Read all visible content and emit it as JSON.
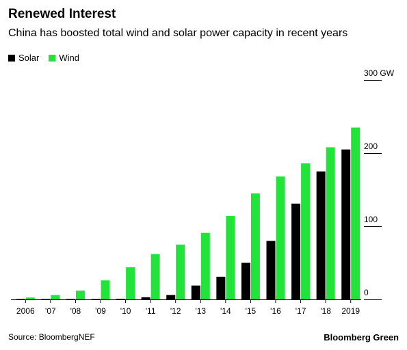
{
  "header": {
    "title": "Renewed Interest",
    "subtitle": "China has boosted total wind and solar power capacity in recent years"
  },
  "footer": {
    "source": "Source: BloombergNEF",
    "brand": "Bloomberg Green"
  },
  "colors": {
    "solar": "#000000",
    "wind": "#22e33a"
  },
  "chart_data": {
    "type": "bar",
    "title": "Renewed Interest",
    "subtitle": "China has boosted total wind and solar power capacity in recent years",
    "categories": [
      "2006",
      "'07",
      "'08",
      "'09",
      "'10",
      "'11",
      "'12",
      "'13",
      "'14",
      "'15",
      "'16",
      "'17",
      "'18",
      "2019"
    ],
    "series": [
      {
        "name": "Solar",
        "color": "#000000",
        "values": [
          0.1,
          0.1,
          0.2,
          0.5,
          0.9,
          3,
          6,
          19,
          31,
          50,
          80,
          131,
          175,
          205
        ]
      },
      {
        "name": "Wind",
        "color": "#22e33a",
        "values": [
          2.6,
          5.9,
          12,
          26,
          44,
          62,
          75,
          91,
          114,
          145,
          168,
          186,
          208,
          235
        ]
      }
    ],
    "ylim": [
      0,
      300
    ],
    "yticks": [
      {
        "value": 0,
        "label": "0"
      },
      {
        "value": 100,
        "label": "100"
      },
      {
        "value": 200,
        "label": "200"
      },
      {
        "value": 300,
        "label": "300 GW"
      }
    ],
    "grid": false,
    "axis_position": "right",
    "legend_position": "top-left"
  }
}
